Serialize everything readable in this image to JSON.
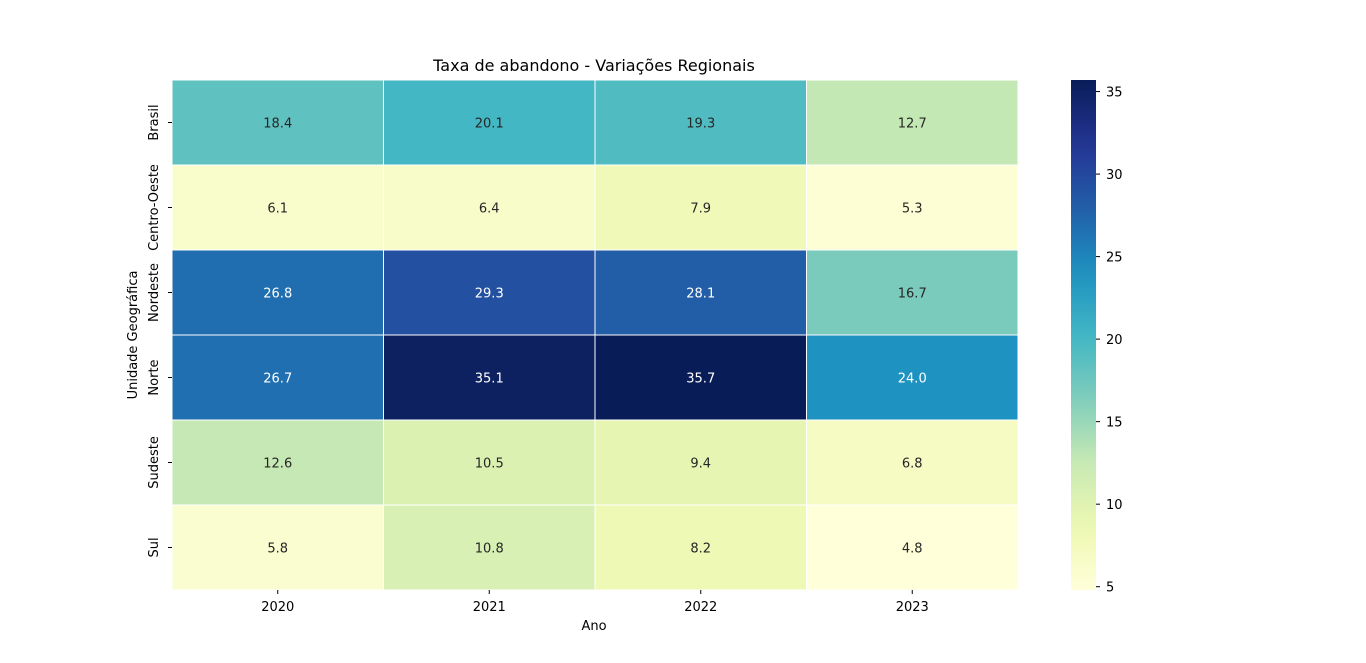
{
  "chart_data": {
    "type": "heatmap",
    "title": "Taxa de abandono - Variações Regionais",
    "xlabel": "Ano",
    "ylabel": "Unidade Geográfica",
    "x_categories": [
      "2020",
      "2021",
      "2022",
      "2023"
    ],
    "y_categories": [
      "Brasil",
      "Centro-Oeste",
      "Nordeste",
      "Norte",
      "Sudeste",
      "Sul"
    ],
    "values": [
      [
        18.4,
        20.1,
        19.3,
        12.7
      ],
      [
        6.1,
        6.4,
        7.9,
        5.3
      ],
      [
        26.8,
        29.3,
        28.1,
        16.7
      ],
      [
        26.7,
        35.1,
        35.7,
        24.0
      ],
      [
        12.6,
        10.5,
        9.4,
        6.8
      ],
      [
        5.8,
        10.8,
        8.2,
        4.8
      ]
    ],
    "colormap": "YlGnBu",
    "color_range": [
      4.8,
      35.7
    ],
    "colorbar_ticks": [
      5,
      10,
      15,
      20,
      25,
      30,
      35
    ],
    "annotations": true
  }
}
